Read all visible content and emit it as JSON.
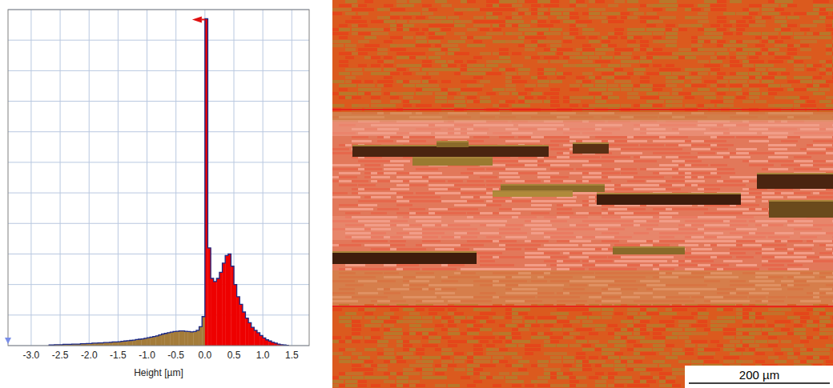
{
  "chart_data": {
    "type": "histogram",
    "xlabel": "Height [µm]",
    "bins": [
      -2.7,
      -2.65,
      -2.6,
      -2.55,
      -2.5,
      -2.45,
      -2.4,
      -2.35,
      -2.3,
      -2.25,
      -2.2,
      -2.15,
      -2.1,
      -2.05,
      -2.0,
      -1.95,
      -1.9,
      -1.85,
      -1.8,
      -1.75,
      -1.7,
      -1.65,
      -1.6,
      -1.55,
      -1.5,
      -1.45,
      -1.4,
      -1.35,
      -1.3,
      -1.25,
      -1.2,
      -1.15,
      -1.1,
      -1.05,
      -1.0,
      -0.95,
      -0.9,
      -0.85,
      -0.8,
      -0.75,
      -0.7,
      -0.65,
      -0.6,
      -0.55,
      -0.5,
      -0.45,
      -0.4,
      -0.35,
      -0.3,
      -0.25,
      -0.2,
      -0.15,
      -0.1,
      -0.05,
      0.0,
      0.05,
      0.1,
      0.15,
      0.2,
      0.25,
      0.3,
      0.35,
      0.4,
      0.45,
      0.5,
      0.55,
      0.6,
      0.65,
      0.7,
      0.75,
      0.8,
      0.85,
      0.9,
      0.95,
      1.0,
      1.05,
      1.1,
      1.15,
      1.2,
      1.25,
      1.3,
      1.35,
      1.4,
      1.45
    ],
    "counts": [
      0.02,
      0.02,
      0.03,
      0.03,
      0.03,
      0.04,
      0.04,
      0.04,
      0.05,
      0.05,
      0.05,
      0.06,
      0.06,
      0.07,
      0.07,
      0.08,
      0.08,
      0.09,
      0.09,
      0.1,
      0.1,
      0.11,
      0.12,
      0.12,
      0.13,
      0.14,
      0.15,
      0.16,
      0.17,
      0.18,
      0.2,
      0.21,
      0.22,
      0.24,
      0.26,
      0.28,
      0.3,
      0.32,
      0.35,
      0.38,
      0.4,
      0.42,
      0.44,
      0.46,
      0.47,
      0.48,
      0.48,
      0.47,
      0.46,
      0.45,
      0.46,
      0.5,
      0.62,
      0.95,
      10.7,
      3.2,
      2.2,
      2.1,
      2.2,
      2.4,
      2.7,
      2.95,
      3.0,
      2.6,
      2.0,
      1.6,
      1.35,
      1.1,
      0.9,
      0.75,
      0.6,
      0.5,
      0.42,
      0.33,
      0.25,
      0.19,
      0.15,
      0.11,
      0.08,
      0.05,
      0.03,
      0.02,
      0.01
    ],
    "colors": [
      "#a47c3a",
      "#a47c3a",
      "#a47c3a",
      "#a47c3a",
      "#a47c3a",
      "#a47c3a",
      "#a47c3a",
      "#a47c3a",
      "#a47c3a",
      "#a47c3a",
      "#a47c3a",
      "#a47c3a",
      "#a47c3a",
      "#a47c3a",
      "#a47c3a",
      "#a47c3a",
      "#a47c3a",
      "#a47c3a",
      "#a47c3a",
      "#a47c3a",
      "#a47c3a",
      "#a47c3a",
      "#a47c3a",
      "#a47c3a",
      "#a47c3a",
      "#a47c3a",
      "#a47c3a",
      "#a47c3a",
      "#a47c3a",
      "#a47c3a",
      "#a47c3a",
      "#a47c3a",
      "#a47c3a",
      "#a47c3a",
      "#a47c3a",
      "#a47c3a",
      "#a47c3a",
      "#a47c3a",
      "#a47c3a",
      "#a47c3a",
      "#a47c3a",
      "#a47c3a",
      "#a47c3a",
      "#a47c3a",
      "#a47c3a",
      "#a47c3a",
      "#a47c3a",
      "#a47c3a",
      "#a47c3a",
      "#a47c3a",
      "#a47c3a",
      "#a47c3a",
      "#a47c3a",
      "#a47c3a",
      "#ee0000",
      "#ee0000",
      "#ee0000",
      "#ee0000",
      "#ee0000",
      "#ee0000",
      "#ee0000",
      "#ee0000",
      "#ee0000",
      "#ee0000",
      "#ee0000",
      "#ee0000",
      "#ee0000",
      "#ee0000",
      "#ee0000",
      "#ee0000",
      "#ee0000",
      "#ee0000",
      "#ee0000",
      "#ee0000",
      "#ee0000",
      "#ee0000",
      "#ee0000",
      "#ee0000",
      "#ee0000",
      "#ee0000",
      "#ee0000",
      "#ee0000",
      "#ee0000"
    ],
    "xlim": [
      -3.4,
      1.8
    ],
    "xticks": [
      {
        "value": -3,
        "label": "-3.0"
      },
      -2.5,
      {
        "value": -2,
        "label": "-2.0"
      },
      -1.5,
      {
        "value": -1,
        "label": "-1.0"
      },
      -0.5,
      {
        "value": 0,
        "label": "0.0"
      },
      0.5,
      {
        "value": 1,
        "label": "1.0"
      },
      1.5
    ],
    "ylim": [
      0,
      11
    ],
    "yticks": [
      0,
      1,
      2,
      3,
      4,
      5,
      6,
      7,
      8,
      9,
      10,
      11
    ],
    "grid": true,
    "tick_labels": "x"
  },
  "image": {
    "scale_bar": "200 µm"
  }
}
